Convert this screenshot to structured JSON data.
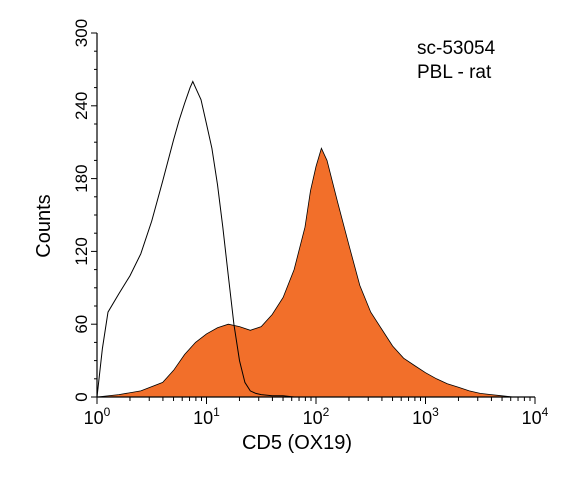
{
  "chart_data": {
    "type": "area",
    "title": "",
    "annotations": [
      "sc-53054",
      "PBL - rat"
    ],
    "xlabel": "CD5 (OX19)",
    "ylabel": "Counts",
    "x_scale": "log",
    "xlim": [
      1,
      10000
    ],
    "ylim": [
      0,
      300
    ],
    "x_ticks": [
      {
        "value": 1,
        "base": "10",
        "exp": "0"
      },
      {
        "value": 10,
        "base": "10",
        "exp": "1"
      },
      {
        "value": 100,
        "base": "10",
        "exp": "2"
      },
      {
        "value": 1000,
        "base": "10",
        "exp": "3"
      },
      {
        "value": 10000,
        "base": "10",
        "exp": "4"
      }
    ],
    "y_ticks": [
      0,
      60,
      120,
      180,
      240,
      300
    ],
    "grid": false,
    "legend": "none",
    "series": [
      {
        "style": "outline",
        "color": "#000000",
        "x": [
          1.0,
          1.12,
          1.26,
          1.58,
          2.0,
          2.51,
          3.16,
          3.98,
          5.01,
          5.62,
          6.31,
          7.08,
          7.5,
          7.94,
          8.91,
          10.0,
          11.2,
          12.6,
          14.1,
          15.8,
          17.8,
          20.0,
          22.4,
          25.1,
          28.2,
          31.6,
          39.8,
          50.1,
          63.1,
          100.0,
          200.0
        ],
        "values": [
          0,
          40,
          70,
          85,
          100,
          118,
          145,
          178,
          212,
          228,
          242,
          255,
          260,
          255,
          245,
          225,
          205,
          175,
          140,
          100,
          60,
          30,
          12,
          5,
          3,
          2,
          1,
          1,
          0,
          0,
          0
        ]
      },
      {
        "style": "filled",
        "color": "#f26f2a",
        "x": [
          1.0,
          1.58,
          2.51,
          3.98,
          5.01,
          6.31,
          7.94,
          10.0,
          12.6,
          15.8,
          20.0,
          25.1,
          31.6,
          39.8,
          50.1,
          63.1,
          79.4,
          89.1,
          100.0,
          112.0,
          126.0,
          158.0,
          200.0,
          251.0,
          316.0,
          398.0,
          501.0,
          631.0,
          794.0,
          1000.0,
          1260.0,
          1580.0,
          2000.0,
          2510.0,
          3160.0,
          3980.0,
          5010.0,
          6310.0,
          10000.0
        ],
        "values": [
          0,
          2,
          5,
          12,
          22,
          35,
          45,
          52,
          57,
          60,
          58,
          55,
          58,
          68,
          82,
          105,
          140,
          170,
          190,
          205,
          195,
          160,
          125,
          92,
          70,
          56,
          42,
          32,
          26,
          20,
          15,
          11,
          8,
          5,
          3,
          2,
          1,
          0,
          0
        ]
      }
    ]
  }
}
